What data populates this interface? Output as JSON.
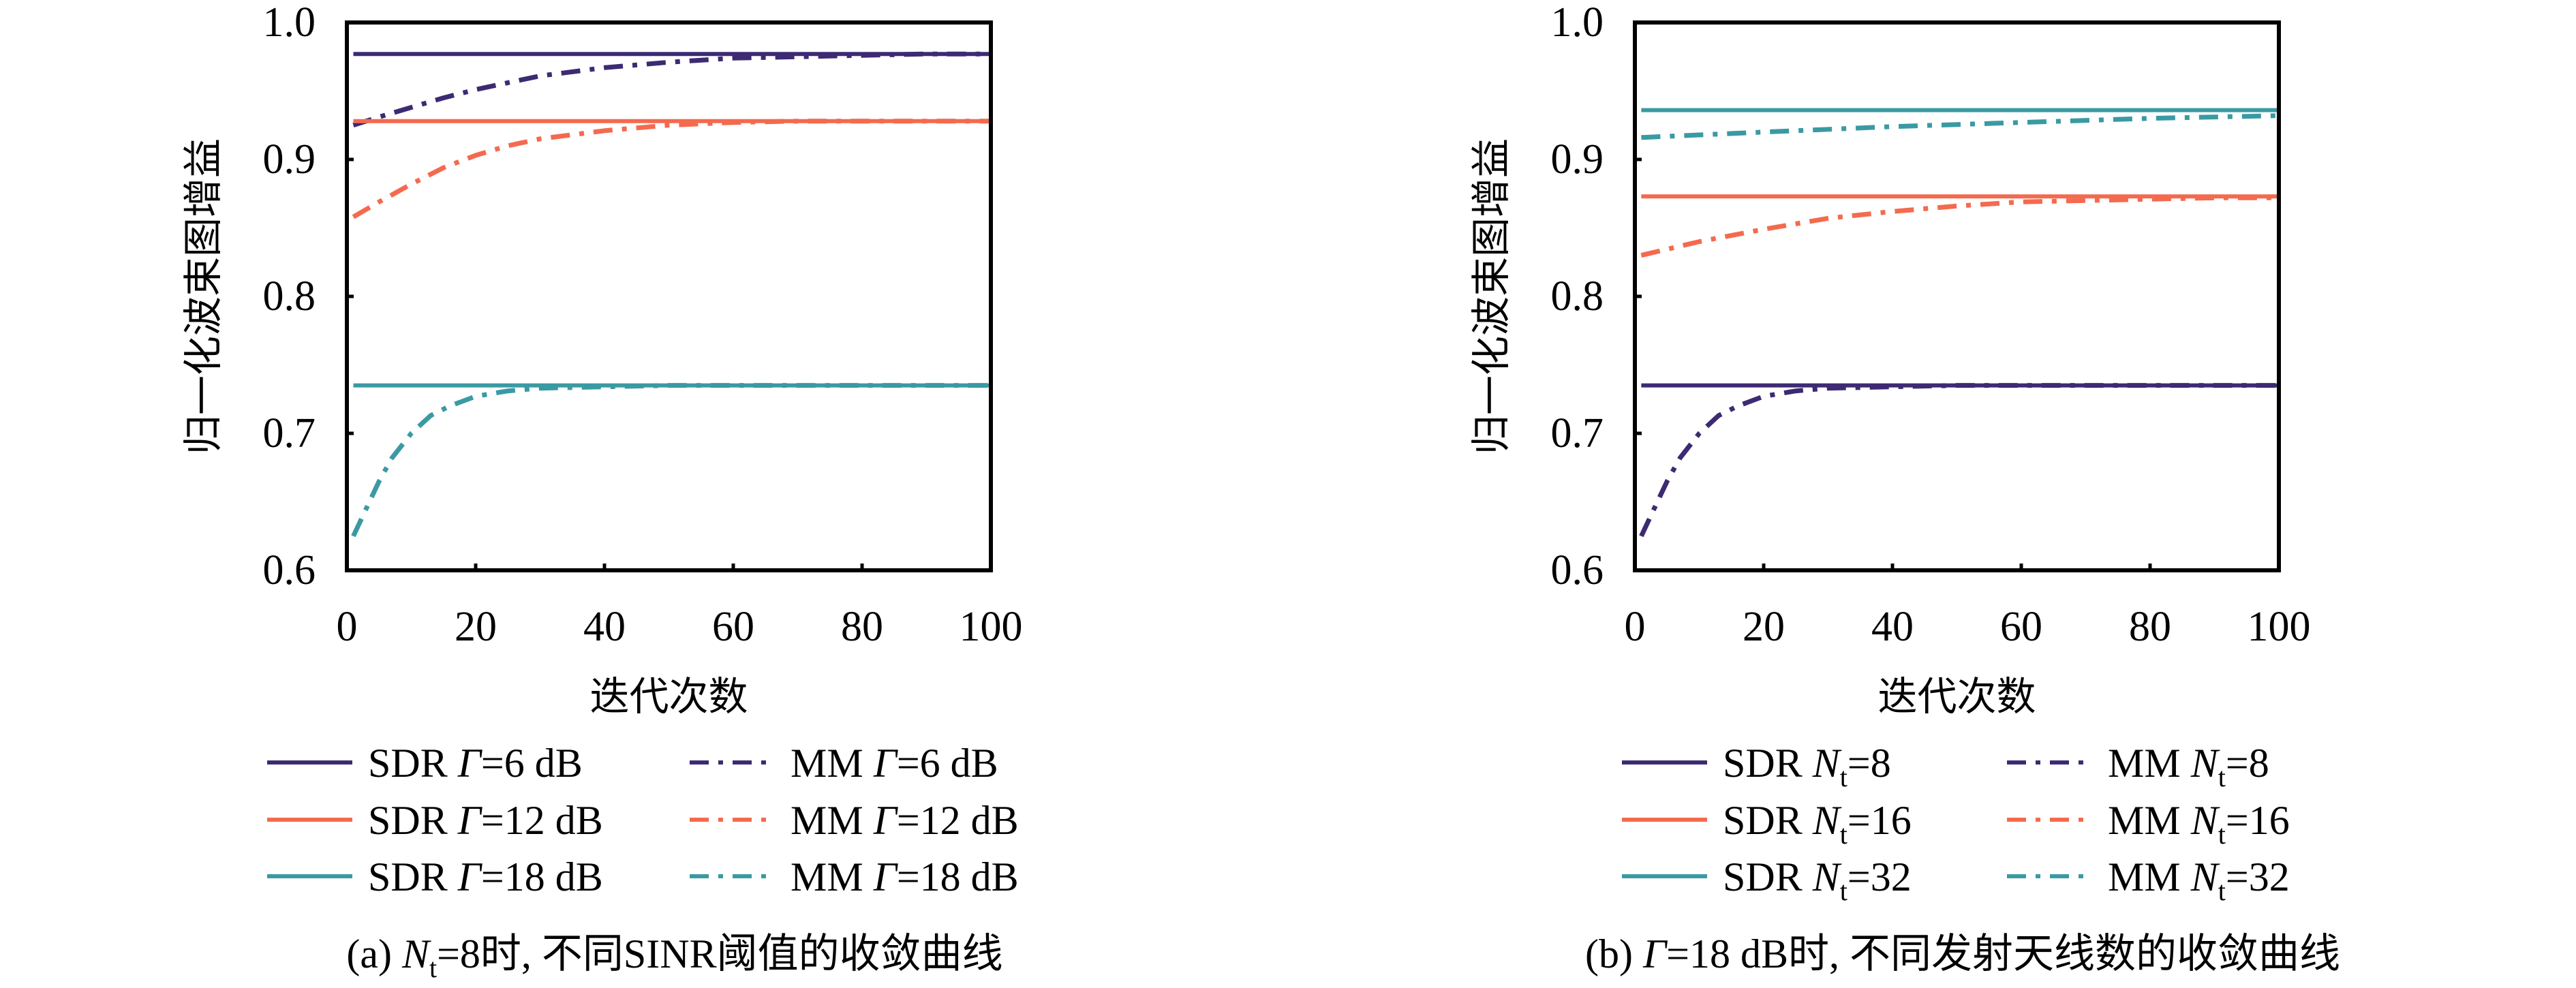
{
  "colors": {
    "purple": "#3d2a73",
    "orange": "#f46a4e",
    "teal": "#3a9aa3",
    "axis": "#000000"
  },
  "chart_data": [
    {
      "id": "a",
      "type": "line",
      "caption": {
        "prefix": "(a) ",
        "symbol": "N",
        "subscript": "t",
        "suffix": "=8时, 不同SINR阈值的收敛曲线"
      },
      "xlabel": "迭代次数",
      "ylabel": "归一化波束图增益",
      "xlim": [
        0,
        100
      ],
      "ylim": [
        0.6,
        1.0
      ],
      "xticks": [
        0,
        20,
        40,
        60,
        80,
        100
      ],
      "yticks": [
        0.6,
        0.7,
        0.8,
        0.9,
        1.0
      ],
      "ytick_labels": [
        "0.6",
        "0.7",
        "0.8",
        "0.9",
        "1.0"
      ],
      "grid": false,
      "legend_position": "bottom",
      "series": [
        {
          "name": "SDR Γ=6 dB",
          "method": "SDR",
          "param_symbol": "Γ",
          "param_sub": "",
          "param_value": "=6 dB",
          "color_key": "purple",
          "style": "solid",
          "x": [
            1,
            100
          ],
          "y": [
            0.977,
            0.977
          ]
        },
        {
          "name": "MM Γ=6 dB",
          "method": "MM",
          "param_symbol": "Γ",
          "param_sub": "",
          "param_value": "=6 dB",
          "color_key": "purple",
          "style": "dashdot",
          "x": [
            1,
            5,
            10,
            15,
            20,
            25,
            30,
            40,
            50,
            60,
            70,
            80,
            90,
            100
          ],
          "y": [
            0.925,
            0.931,
            0.938,
            0.945,
            0.951,
            0.956,
            0.961,
            0.967,
            0.971,
            0.974,
            0.975,
            0.976,
            0.977,
            0.977
          ]
        },
        {
          "name": "SDR Γ=12 dB",
          "method": "SDR",
          "param_symbol": "Γ",
          "param_sub": "",
          "param_value": "=12 dB",
          "color_key": "orange",
          "style": "solid",
          "x": [
            1,
            100
          ],
          "y": [
            0.928,
            0.928
          ]
        },
        {
          "name": "MM Γ=12 dB",
          "method": "MM",
          "param_symbol": "Γ",
          "param_sub": "",
          "param_value": "=12 dB",
          "color_key": "orange",
          "style": "dashdot",
          "x": [
            1,
            5,
            10,
            15,
            20,
            25,
            30,
            40,
            50,
            60,
            70,
            80,
            90,
            100
          ],
          "y": [
            0.858,
            0.869,
            0.882,
            0.894,
            0.903,
            0.91,
            0.915,
            0.921,
            0.925,
            0.927,
            0.928,
            0.928,
            0.928,
            0.928
          ]
        },
        {
          "name": "SDR Γ=18 dB",
          "method": "SDR",
          "param_symbol": "Γ",
          "param_sub": "",
          "param_value": "=18 dB",
          "color_key": "teal",
          "style": "solid",
          "x": [
            1,
            100
          ],
          "y": [
            0.735,
            0.735
          ]
        },
        {
          "name": "MM Γ=18 dB",
          "method": "MM",
          "param_symbol": "Γ",
          "param_sub": "",
          "param_value": "=18 dB",
          "color_key": "teal",
          "style": "dashdot",
          "x": [
            1,
            3,
            5,
            7,
            10,
            13,
            16,
            20,
            25,
            30,
            40,
            50,
            60,
            80,
            100
          ],
          "y": [
            0.625,
            0.645,
            0.665,
            0.682,
            0.7,
            0.713,
            0.72,
            0.727,
            0.731,
            0.733,
            0.734,
            0.735,
            0.735,
            0.735,
            0.735
          ]
        }
      ]
    },
    {
      "id": "b",
      "type": "line",
      "caption": {
        "prefix": "(b) ",
        "symbol": "Γ",
        "subscript": "",
        "suffix": "=18 dB时, 不同发射天线数的收敛曲线"
      },
      "xlabel": "迭代次数",
      "ylabel": "归一化波束图增益",
      "xlim": [
        0,
        100
      ],
      "ylim": [
        0.6,
        1.0
      ],
      "xticks": [
        0,
        20,
        40,
        60,
        80,
        100
      ],
      "yticks": [
        0.6,
        0.7,
        0.8,
        0.9,
        1.0
      ],
      "ytick_labels": [
        "0.6",
        "0.7",
        "0.8",
        "0.9",
        "1.0"
      ],
      "grid": false,
      "legend_position": "bottom",
      "series": [
        {
          "name": "SDR Nt=8",
          "method": "SDR",
          "param_symbol": "N",
          "param_sub": "t",
          "param_value": "=8",
          "color_key": "purple",
          "style": "solid",
          "x": [
            1,
            100
          ],
          "y": [
            0.735,
            0.735
          ]
        },
        {
          "name": "MM Nt=8",
          "method": "MM",
          "param_symbol": "N",
          "param_sub": "t",
          "param_value": "=8",
          "color_key": "purple",
          "style": "dashdot",
          "x": [
            1,
            3,
            5,
            7,
            10,
            13,
            16,
            20,
            25,
            30,
            40,
            50,
            60,
            80,
            100
          ],
          "y": [
            0.625,
            0.645,
            0.665,
            0.682,
            0.7,
            0.713,
            0.72,
            0.727,
            0.731,
            0.733,
            0.734,
            0.735,
            0.735,
            0.735,
            0.735
          ]
        },
        {
          "name": "SDR Nt=16",
          "method": "SDR",
          "param_symbol": "N",
          "param_sub": "t",
          "param_value": "=16",
          "color_key": "orange",
          "style": "solid",
          "x": [
            1,
            100
          ],
          "y": [
            0.873,
            0.873
          ]
        },
        {
          "name": "MM Nt=16",
          "method": "MM",
          "param_symbol": "N",
          "param_sub": "t",
          "param_value": "=16",
          "color_key": "orange",
          "style": "dashdot",
          "x": [
            1,
            10,
            20,
            30,
            40,
            50,
            60,
            70,
            80,
            90,
            100
          ],
          "y": [
            0.83,
            0.84,
            0.849,
            0.857,
            0.862,
            0.866,
            0.869,
            0.87,
            0.871,
            0.872,
            0.872
          ]
        },
        {
          "name": "SDR Nt=32",
          "method": "SDR",
          "param_symbol": "N",
          "param_sub": "t",
          "param_value": "=32",
          "color_key": "teal",
          "style": "solid",
          "x": [
            1,
            100
          ],
          "y": [
            0.936,
            0.936
          ]
        },
        {
          "name": "MM Nt=32",
          "method": "MM",
          "param_symbol": "N",
          "param_sub": "t",
          "param_value": "=32",
          "color_key": "teal",
          "style": "dashdot",
          "x": [
            1,
            20,
            40,
            60,
            80,
            100
          ],
          "y": [
            0.916,
            0.92,
            0.924,
            0.927,
            0.93,
            0.932
          ]
        }
      ]
    }
  ]
}
